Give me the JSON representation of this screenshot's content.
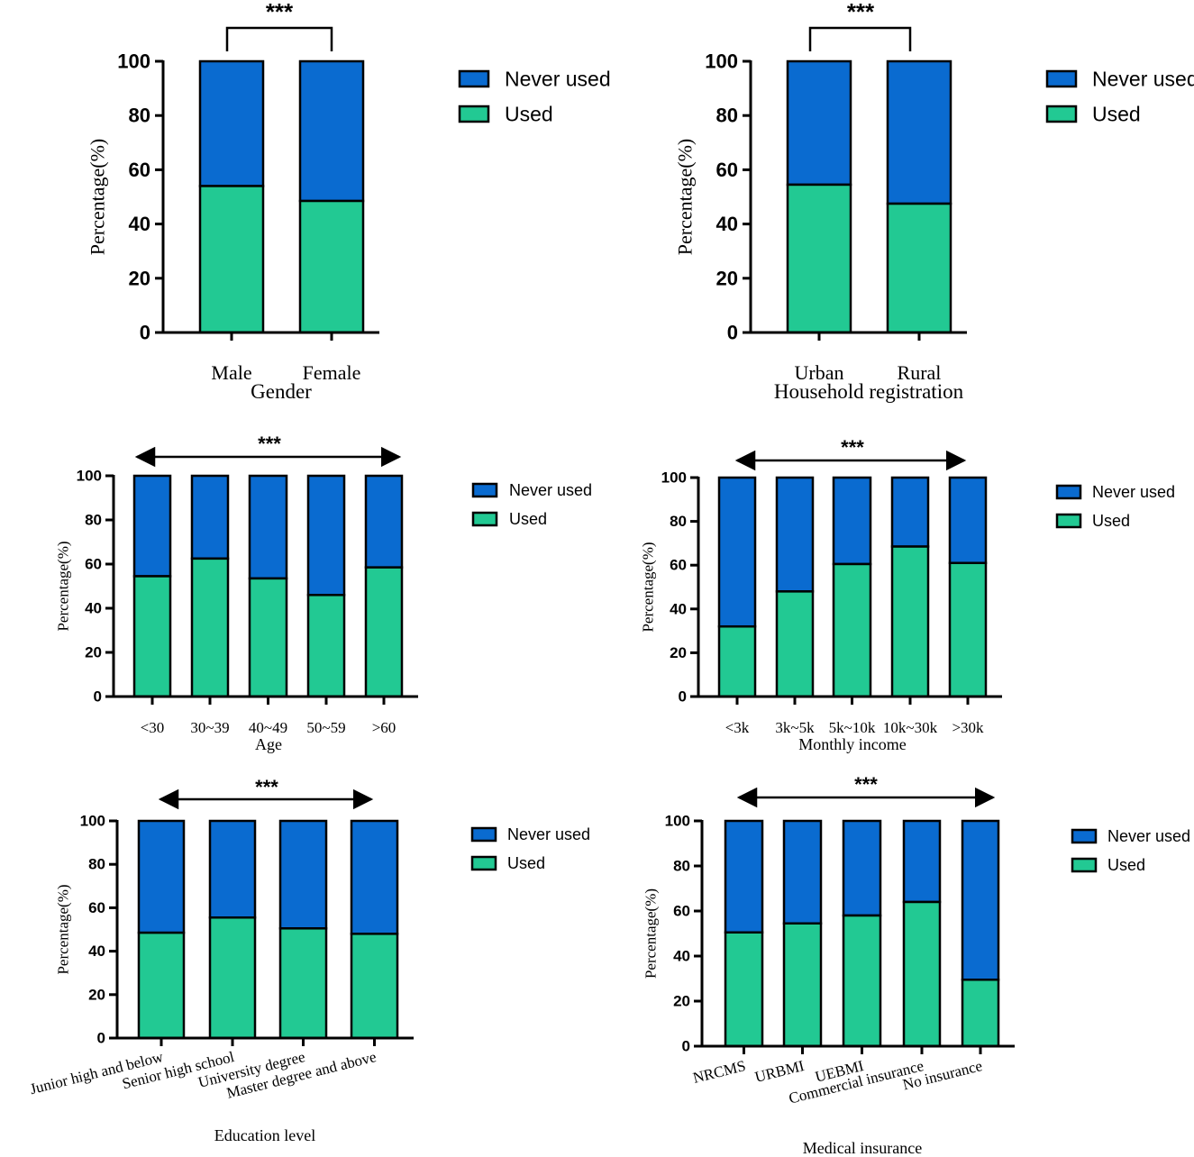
{
  "colors": {
    "never_used": "#0a6bd0",
    "used": "#22c993",
    "axis": "#000000"
  },
  "chart_data": [
    {
      "type": "bar",
      "stacked": true,
      "title": "",
      "xlabel": "Gender",
      "ylabel": "Percentage(%)",
      "ylim": [
        0,
        100
      ],
      "yticks": [
        "0",
        "20",
        "40",
        "60",
        "80",
        "100"
      ],
      "categories": [
        "Male",
        "Female"
      ],
      "series": [
        {
          "name": "Used",
          "values": [
            54,
            48.5
          ]
        },
        {
          "name": "Never used",
          "values": [
            46,
            51.5
          ]
        }
      ],
      "legend": [
        "Never used",
        "Used"
      ],
      "legend_position": "right",
      "significance": {
        "label": "***",
        "style": "bracket"
      }
    },
    {
      "type": "bar",
      "stacked": true,
      "title": "",
      "xlabel": "Household registration",
      "ylabel": "Percentage(%)",
      "ylim": [
        0,
        100
      ],
      "yticks": [
        "0",
        "20",
        "40",
        "60",
        "80",
        "100"
      ],
      "categories": [
        "Urban",
        "Rural"
      ],
      "series": [
        {
          "name": "Used",
          "values": [
            54.5,
            47.5
          ]
        },
        {
          "name": "Never used",
          "values": [
            45.5,
            52.5
          ]
        }
      ],
      "legend": [
        "Never used",
        "Used"
      ],
      "legend_position": "right",
      "significance": {
        "label": "***",
        "style": "bracket"
      }
    },
    {
      "type": "bar",
      "stacked": true,
      "title": "",
      "xlabel": "Age",
      "ylabel": "Percentage(%)",
      "ylim": [
        0,
        100
      ],
      "yticks": [
        "0",
        "20",
        "40",
        "60",
        "80",
        "100"
      ],
      "categories": [
        "<30",
        "30~39",
        "40~49",
        "50~59",
        ">60"
      ],
      "series": [
        {
          "name": "Used",
          "values": [
            54.5,
            62.5,
            53.5,
            46,
            58.5
          ]
        },
        {
          "name": "Never used",
          "values": [
            45.5,
            37.5,
            46.5,
            54,
            41.5
          ]
        }
      ],
      "legend": [
        "Never used",
        "Used"
      ],
      "legend_position": "right",
      "significance": {
        "label": "***",
        "style": "arrow"
      }
    },
    {
      "type": "bar",
      "stacked": true,
      "title": "",
      "xlabel": "Monthly income",
      "ylabel": "Percentage(%)",
      "ylim": [
        0,
        100
      ],
      "yticks": [
        "0",
        "20",
        "40",
        "60",
        "80",
        "100"
      ],
      "categories": [
        "<3k",
        "3k~5k",
        "5k~10k",
        "10k~30k",
        ">30k"
      ],
      "series": [
        {
          "name": "Used",
          "values": [
            32,
            48,
            60.5,
            68.5,
            61
          ]
        },
        {
          "name": "Never used",
          "values": [
            68,
            52,
            39.5,
            31.5,
            39
          ]
        }
      ],
      "legend": [
        "Never used",
        "Used"
      ],
      "legend_position": "right",
      "significance": {
        "label": "***",
        "style": "arrow"
      }
    },
    {
      "type": "bar",
      "stacked": true,
      "title": "",
      "xlabel": "Education level",
      "ylabel": "Percentage(%)",
      "ylim": [
        0,
        100
      ],
      "yticks": [
        "0",
        "20",
        "40",
        "60",
        "80",
        "100"
      ],
      "categories": [
        "Junior high and below",
        "Senior high school",
        "University degree",
        "Master degree and above"
      ],
      "series": [
        {
          "name": "Used",
          "values": [
            48.5,
            55.5,
            50.5,
            48
          ]
        },
        {
          "name": "Never used",
          "values": [
            51.5,
            44.5,
            49.5,
            52
          ]
        }
      ],
      "legend": [
        "Never used",
        "Used"
      ],
      "legend_position": "right",
      "significance": {
        "label": "***",
        "style": "arrow"
      }
    },
    {
      "type": "bar",
      "stacked": true,
      "title": "",
      "xlabel": "Medical insurance",
      "ylabel": "Percentage(%)",
      "ylim": [
        0,
        100
      ],
      "yticks": [
        "0",
        "20",
        "40",
        "60",
        "80",
        "100"
      ],
      "categories": [
        "NRCMS",
        "URBMI",
        "UEBMI",
        "Commercial insurance",
        "No insurance"
      ],
      "series": [
        {
          "name": "Used",
          "values": [
            50.5,
            54.5,
            58,
            64,
            29.5
          ]
        },
        {
          "name": "Never used",
          "values": [
            49.5,
            45.5,
            42,
            36,
            70.5
          ]
        }
      ],
      "legend": [
        "Never used",
        "Used"
      ],
      "legend_position": "right",
      "significance": {
        "label": "***",
        "style": "arrow"
      }
    }
  ]
}
